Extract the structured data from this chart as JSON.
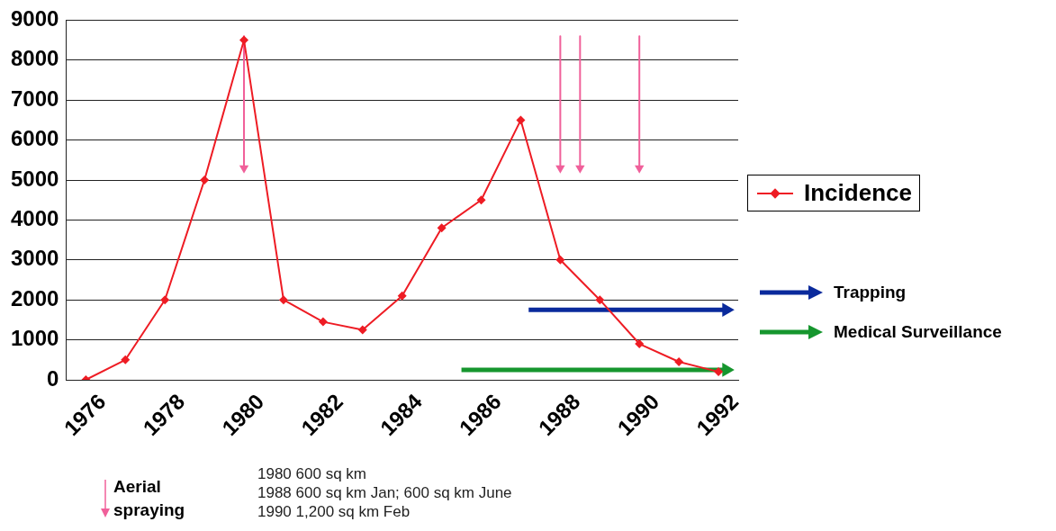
{
  "chart_data": {
    "type": "line",
    "xlim": [
      1975.5,
      1992.5
    ],
    "xticks": [
      1976,
      1978,
      1980,
      1982,
      1984,
      1986,
      1988,
      1990,
      1992
    ],
    "ylim": [
      0,
      9000
    ],
    "yticks": [
      0,
      1000,
      2000,
      3000,
      4000,
      5000,
      6000,
      7000,
      8000,
      9000
    ],
    "grid": "y",
    "legend": "right",
    "series": [
      {
        "name": "Incidence",
        "color": "#ee1c24",
        "marker": "diamond",
        "x": [
          1976,
          1977,
          1978,
          1979,
          1980,
          1981,
          1982,
          1983,
          1984,
          1985,
          1986,
          1987,
          1988,
          1989,
          1990,
          1991,
          1992
        ],
        "values": [
          0,
          500,
          2000,
          5000,
          8500,
          2000,
          1450,
          1250,
          2100,
          3800,
          4500,
          6500,
          3000,
          2000,
          900,
          450,
          200
        ]
      },
      {
        "name": "Trapping",
        "color": "#0a2a9c",
        "marker": "triangle",
        "x": [
          1987.2,
          1992.2
        ],
        "values": [
          1750,
          1750
        ]
      },
      {
        "name": "Medical Surveillance",
        "color": "#16962e",
        "marker": "triangle",
        "x": [
          1985.5,
          1992.2
        ],
        "values": [
          250,
          250
        ]
      },
      {
        "name": "Aerial spraying",
        "color": "#f0609a",
        "marker": "triangle",
        "x": [
          1980,
          1980,
          null,
          1988,
          1988,
          null,
          1988.5,
          1988.5,
          null,
          1990,
          1990
        ],
        "values": [
          8600,
          5300,
          null,
          8600,
          5300,
          null,
          8600,
          5300,
          null,
          8600,
          5300
        ]
      }
    ],
    "annotations": [
      "1980 600 sq km",
      "1988 600 sq km Jan; 600 sq km June",
      "1990 1,200 sq km Feb"
    ]
  }
}
